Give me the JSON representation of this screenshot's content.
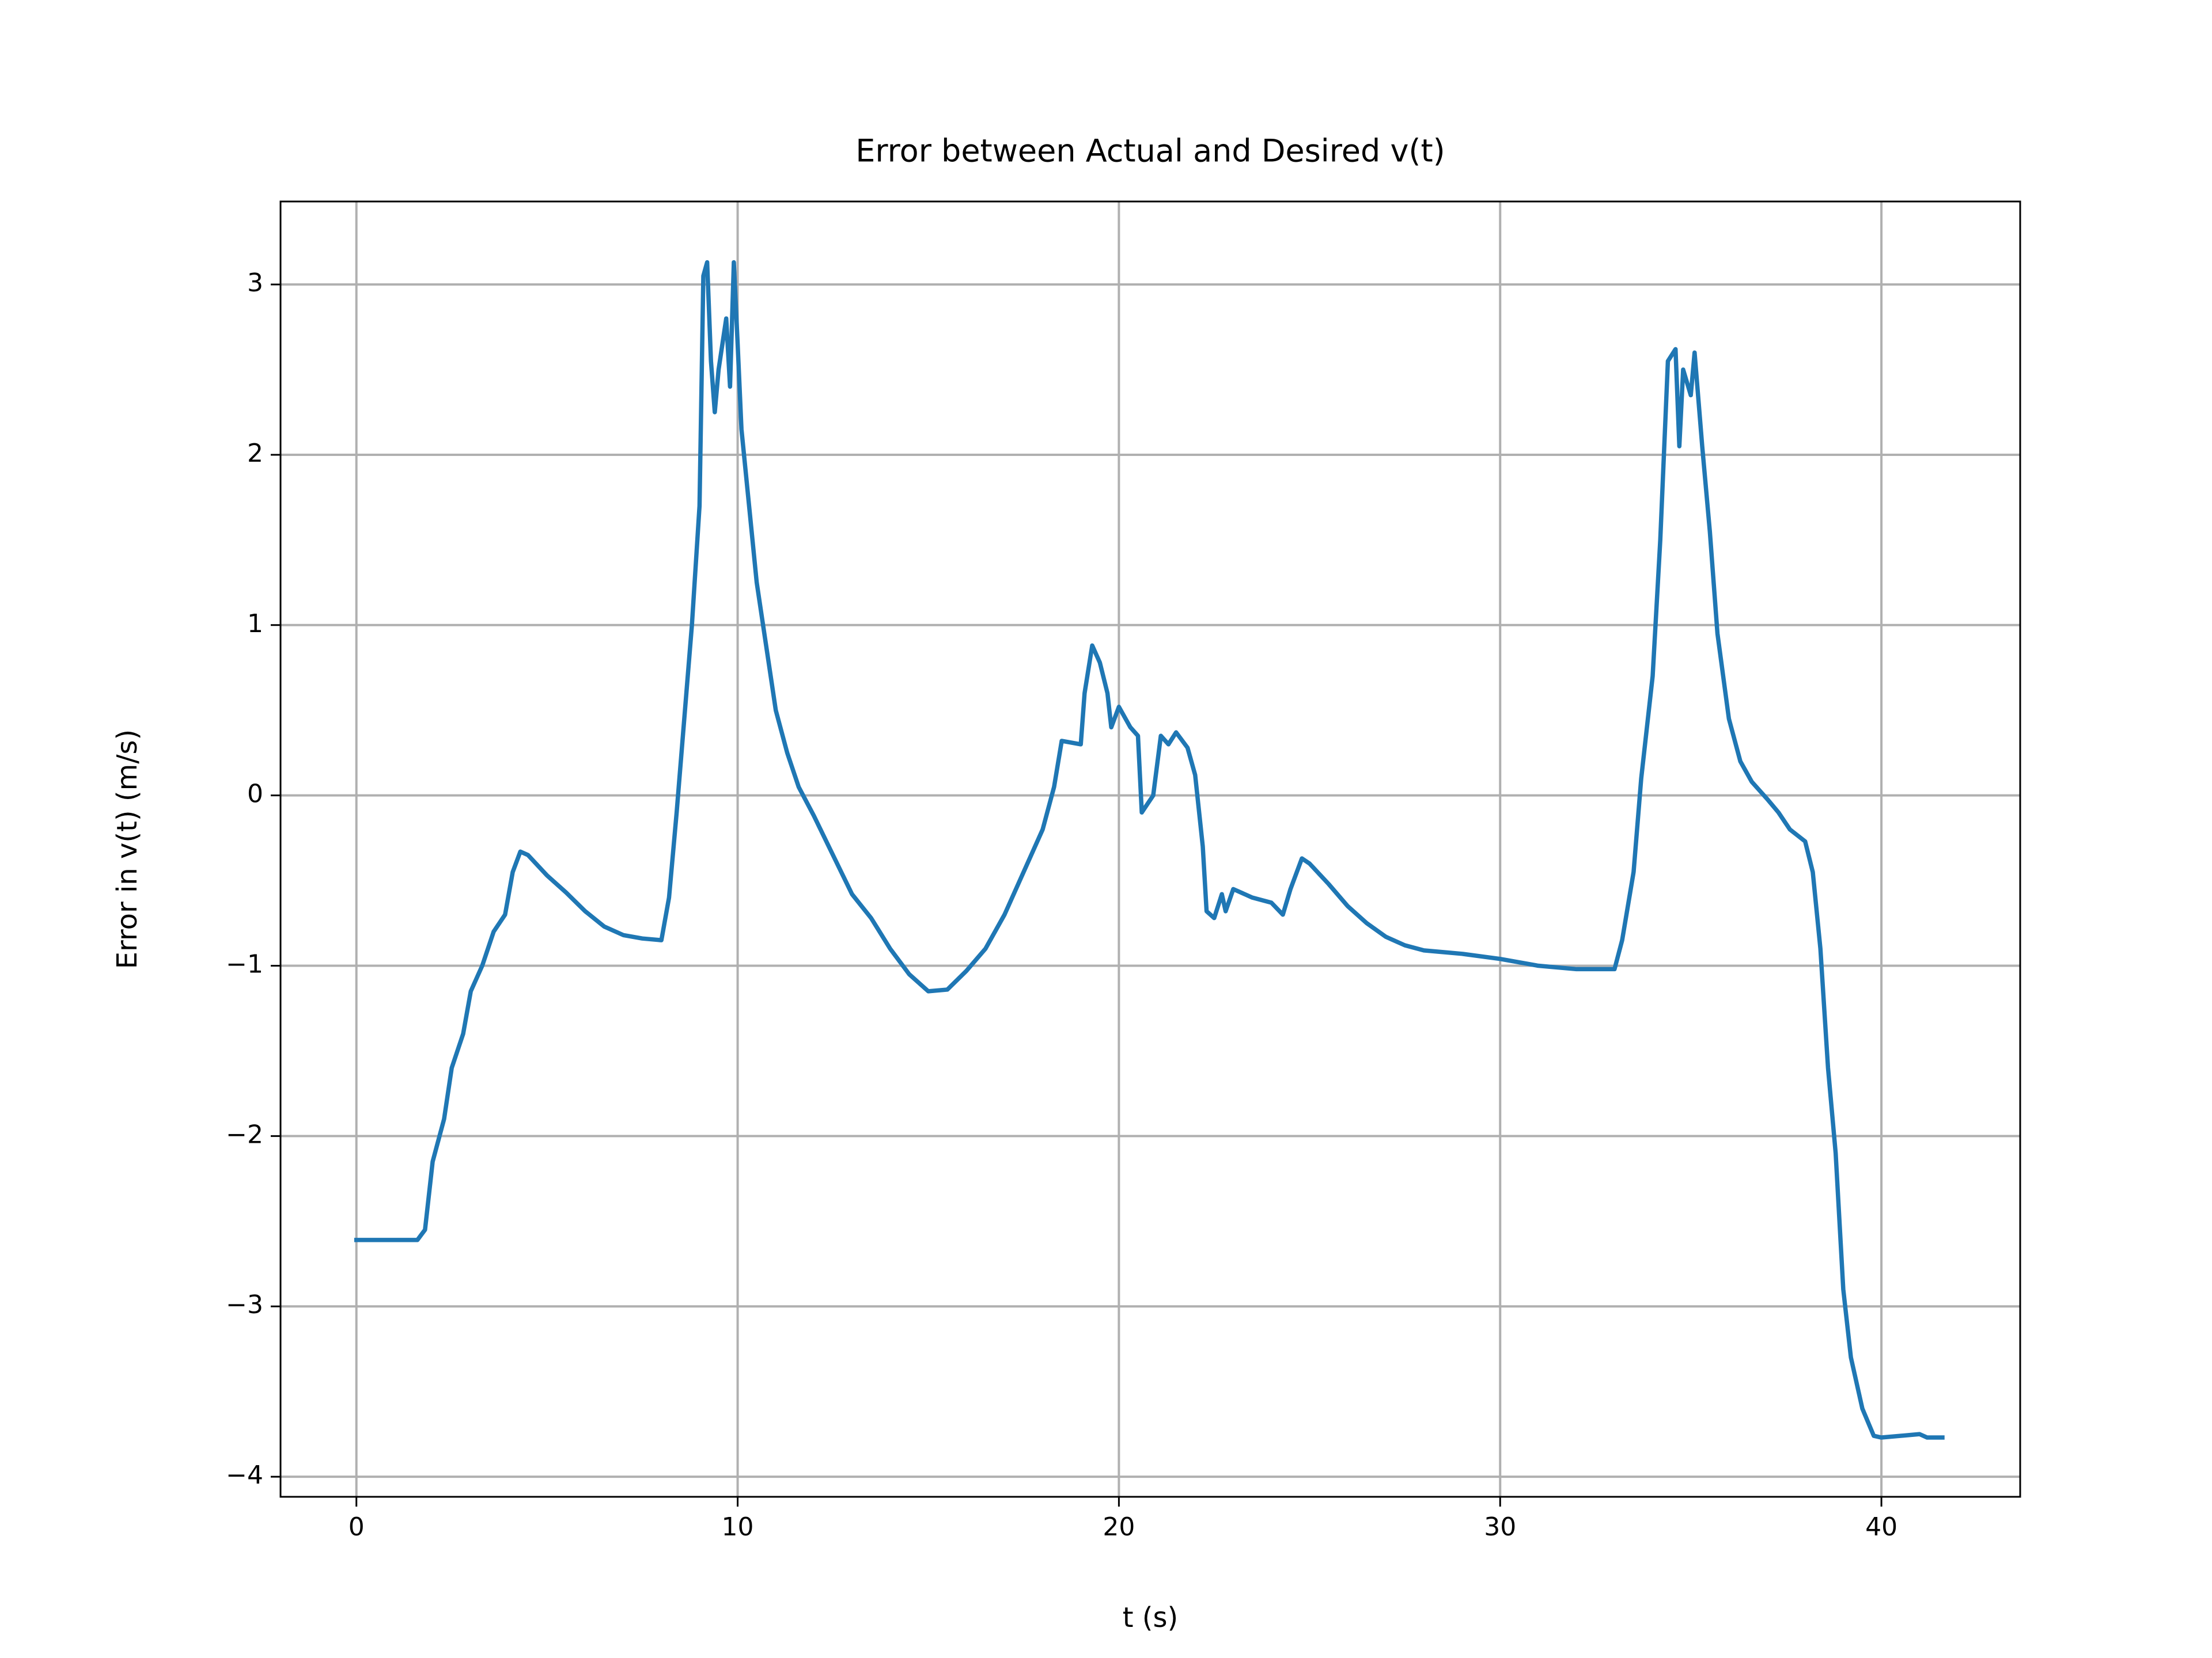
{
  "chart_data": {
    "type": "line",
    "title": "Error between Actual and Desired v(t)",
    "x_label": "t (s)",
    "y_label": "Error in v(t) (m/s)",
    "color": "#1f77b4",
    "grid": true,
    "xlim": [
      -1.99,
      43.64
    ],
    "ylim": [
      -4.118,
      3.487
    ],
    "xticks": [
      0,
      10,
      20,
      30,
      40
    ],
    "yticks": [
      {
        "value": -4,
        "label": "−4"
      },
      {
        "value": -3,
        "label": "−3"
      },
      {
        "value": -2,
        "label": "−2"
      },
      {
        "value": -1,
        "label": "−1"
      },
      0,
      1,
      2,
      3
    ],
    "x": [
      0,
      1.6,
      1.8,
      2.0,
      2.3,
      2.5,
      2.8,
      3.0,
      3.3,
      3.6,
      3.9,
      4.1,
      4.3,
      4.5,
      5.0,
      5.5,
      6.0,
      6.5,
      7.0,
      7.5,
      8.0,
      8.2,
      8.4,
      8.6,
      8.8,
      9.0,
      9.1,
      9.2,
      9.3,
      9.4,
      9.5,
      9.7,
      9.8,
      9.9,
      10.0,
      10.1,
      10.3,
      10.5,
      10.8,
      11.0,
      11.3,
      11.6,
      12.0,
      12.5,
      13.0,
      13.5,
      14.0,
      14.5,
      15.0,
      15.5,
      16.0,
      16.5,
      17.0,
      17.5,
      18.0,
      18.3,
      18.5,
      19.0,
      19.1,
      19.3,
      19.5,
      19.7,
      19.8,
      20.0,
      20.3,
      20.5,
      20.6,
      20.9,
      21.1,
      21.3,
      21.5,
      21.8,
      22.0,
      22.2,
      22.3,
      22.5,
      22.7,
      22.8,
      23.0,
      23.5,
      24.0,
      24.3,
      24.5,
      24.8,
      25.0,
      25.5,
      26.0,
      26.5,
      27.0,
      27.5,
      28.0,
      29.0,
      30.0,
      31.0,
      32.0,
      33.0,
      33.2,
      33.5,
      33.7,
      34.0,
      34.2,
      34.4,
      34.6,
      34.7,
      34.8,
      35.0,
      35.1,
      35.3,
      35.5,
      35.7,
      36.0,
      36.3,
      36.6,
      37.0,
      37.3,
      37.6,
      38.0,
      38.2,
      38.4,
      38.6,
      38.8,
      39.0,
      39.2,
      39.5,
      39.8,
      40.0,
      41.0,
      41.2,
      41.6
    ],
    "values": [
      -2.61,
      -2.61,
      -2.55,
      -2.15,
      -1.9,
      -1.6,
      -1.4,
      -1.15,
      -1.0,
      -0.8,
      -0.7,
      -0.45,
      -0.33,
      -0.35,
      -0.47,
      -0.57,
      -0.68,
      -0.77,
      -0.82,
      -0.84,
      -0.85,
      -0.6,
      -0.1,
      0.45,
      1.0,
      1.7,
      3.05,
      3.13,
      2.55,
      2.25,
      2.5,
      2.8,
      2.4,
      3.13,
      2.65,
      2.15,
      1.7,
      1.25,
      0.8,
      0.5,
      0.25,
      0.05,
      -0.12,
      -0.35,
      -0.58,
      -0.72,
      -0.9,
      -1.05,
      -1.15,
      -1.14,
      -1.03,
      -0.9,
      -0.7,
      -0.45,
      -0.2,
      0.05,
      0.32,
      0.3,
      0.6,
      0.88,
      0.78,
      0.6,
      0.4,
      0.52,
      0.4,
      0.35,
      -0.1,
      0.0,
      0.35,
      0.3,
      0.37,
      0.28,
      0.12,
      -0.3,
      -0.68,
      -0.72,
      -0.58,
      -0.68,
      -0.55,
      -0.6,
      -0.63,
      -0.7,
      -0.55,
      -0.37,
      -0.4,
      -0.52,
      -0.65,
      -0.75,
      -0.83,
      -0.88,
      -0.91,
      -0.93,
      -0.96,
      -1.0,
      -1.02,
      -1.02,
      -0.85,
      -0.45,
      0.1,
      0.7,
      1.5,
      2.55,
      2.62,
      2.05,
      2.5,
      2.35,
      2.6,
      2.05,
      1.55,
      0.95,
      0.45,
      0.2,
      0.08,
      -0.02,
      -0.1,
      -0.2,
      -0.27,
      -0.45,
      -0.9,
      -1.6,
      -2.1,
      -2.9,
      -3.3,
      -3.6,
      -3.76,
      -3.77,
      -3.75,
      -3.77,
      -3.77
    ]
  }
}
